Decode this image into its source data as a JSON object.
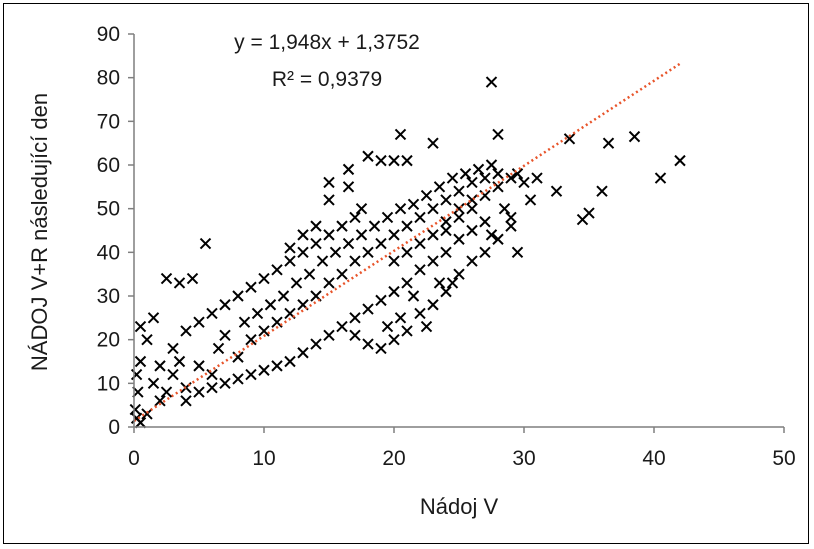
{
  "chart_data": {
    "type": "scatter",
    "title": "",
    "xlabel": "Nádoj V",
    "ylabel": "NÁDOJ V+R následující den",
    "xlim": [
      0,
      50
    ],
    "ylim": [
      0,
      90
    ],
    "x_ticks": [
      "0",
      "10",
      "20",
      "30",
      "40",
      "50"
    ],
    "y_ticks": [
      "0",
      "10",
      "20",
      "30",
      "40",
      "50",
      "60",
      "70",
      "80",
      "90"
    ],
    "grid": false,
    "legend": "none",
    "marker": "x",
    "marker_color": "#000000",
    "trendline": {
      "type": "linear",
      "slope": 1.948,
      "intercept": 1.3752,
      "x_range": [
        0,
        42
      ],
      "color": "#e8542a",
      "style": "dotted",
      "equation_label": "y = 1,948x + 1,3752",
      "r2_label": "R² = 0,9379"
    },
    "series": [
      {
        "values": [
          [
            27.5,
            79
          ],
          [
            42,
            61
          ],
          [
            40.5,
            57
          ],
          [
            38.5,
            66.5
          ],
          [
            36.5,
            65
          ],
          [
            33.5,
            66
          ],
          [
            36,
            54
          ],
          [
            35,
            49
          ],
          [
            34.5,
            47.5
          ],
          [
            32.5,
            54
          ],
          [
            31,
            57
          ],
          [
            30.5,
            52
          ],
          [
            29.5,
            40
          ],
          [
            29,
            46
          ],
          [
            28,
            67
          ],
          [
            23,
            65
          ],
          [
            20.5,
            67
          ],
          [
            20,
            61
          ],
          [
            21,
            61
          ],
          [
            19,
            61
          ],
          [
            18,
            62
          ],
          [
            16.5,
            59
          ],
          [
            15,
            56
          ],
          [
            16.5,
            55
          ],
          [
            17.5,
            50
          ],
          [
            5.5,
            42
          ],
          [
            4.5,
            34
          ],
          [
            3.5,
            33
          ],
          [
            2.5,
            34
          ],
          [
            1.5,
            25
          ],
          [
            0.5,
            23
          ],
          [
            1,
            20
          ],
          [
            0.5,
            15
          ],
          [
            0.2,
            12
          ],
          [
            0.3,
            8
          ],
          [
            0.1,
            4
          ],
          [
            0.2,
            2
          ],
          [
            0.5,
            1
          ],
          [
            1,
            3
          ],
          [
            2,
            6
          ],
          [
            1.5,
            10
          ],
          [
            3,
            12
          ],
          [
            2.5,
            8
          ],
          [
            4,
            9
          ],
          [
            3.5,
            15
          ],
          [
            5,
            14
          ],
          [
            6,
            12
          ],
          [
            6.5,
            18
          ],
          [
            7,
            21
          ],
          [
            8,
            16
          ],
          [
            8.5,
            24
          ],
          [
            9,
            20
          ],
          [
            9.5,
            26
          ],
          [
            10,
            22
          ],
          [
            10.5,
            28
          ],
          [
            11,
            24
          ],
          [
            11.5,
            30
          ],
          [
            12,
            26
          ],
          [
            12.5,
            33
          ],
          [
            13,
            28
          ],
          [
            13.5,
            35
          ],
          [
            14,
            30
          ],
          [
            14.5,
            38
          ],
          [
            15,
            33
          ],
          [
            15.5,
            40
          ],
          [
            16,
            35
          ],
          [
            16.5,
            42
          ],
          [
            17,
            38
          ],
          [
            17.5,
            44
          ],
          [
            18,
            40
          ],
          [
            18.5,
            46
          ],
          [
            19,
            42
          ],
          [
            19.5,
            48
          ],
          [
            20,
            44
          ],
          [
            20.5,
            50
          ],
          [
            21,
            46
          ],
          [
            21.5,
            51
          ],
          [
            22,
            48
          ],
          [
            22.5,
            53
          ],
          [
            23,
            50
          ],
          [
            23.5,
            55
          ],
          [
            24,
            52
          ],
          [
            24.5,
            57
          ],
          [
            25,
            54
          ],
          [
            25.5,
            58
          ],
          [
            26,
            56
          ],
          [
            26.5,
            59
          ],
          [
            27,
            57
          ],
          [
            27.5,
            60
          ],
          [
            28,
            58
          ],
          [
            24,
            45
          ],
          [
            25,
            48
          ],
          [
            26,
            50
          ],
          [
            25,
            43
          ],
          [
            24,
            40
          ],
          [
            23,
            38
          ],
          [
            22,
            36
          ],
          [
            21,
            33
          ],
          [
            20,
            31
          ],
          [
            19,
            29
          ],
          [
            18,
            27
          ],
          [
            17,
            25
          ],
          [
            16,
            23
          ],
          [
            15,
            21
          ],
          [
            14,
            19
          ],
          [
            13,
            17
          ],
          [
            12,
            15
          ],
          [
            11,
            14
          ],
          [
            10,
            13
          ],
          [
            9,
            12
          ],
          [
            8,
            11
          ],
          [
            7,
            10
          ],
          [
            6,
            9
          ],
          [
            5,
            8
          ],
          [
            4,
            6
          ],
          [
            2,
            14
          ],
          [
            3,
            18
          ],
          [
            4,
            22
          ],
          [
            5,
            24
          ],
          [
            6,
            26
          ],
          [
            7,
            28
          ],
          [
            8,
            30
          ],
          [
            9,
            32
          ],
          [
            10,
            34
          ],
          [
            11,
            36
          ],
          [
            12,
            38
          ],
          [
            13,
            40
          ],
          [
            14,
            42
          ],
          [
            15,
            44
          ],
          [
            16,
            46
          ],
          [
            17,
            48
          ],
          [
            15,
            52
          ],
          [
            14,
            46
          ],
          [
            13,
            44
          ],
          [
            12,
            41
          ],
          [
            20,
            38
          ],
          [
            21,
            40
          ],
          [
            22,
            42
          ],
          [
            23,
            44
          ],
          [
            24,
            47
          ],
          [
            25,
            50
          ],
          [
            26,
            52
          ],
          [
            27,
            53
          ],
          [
            28,
            55
          ],
          [
            29,
            57
          ],
          [
            29.5,
            58
          ],
          [
            30,
            56
          ],
          [
            28.5,
            50
          ],
          [
            27,
            47
          ],
          [
            26,
            45
          ],
          [
            19,
            18
          ],
          [
            20,
            20
          ],
          [
            21,
            22
          ],
          [
            18,
            19
          ],
          [
            17,
            21
          ],
          [
            22,
            26
          ],
          [
            23,
            28
          ],
          [
            24,
            31
          ],
          [
            23.5,
            33
          ],
          [
            25,
            35
          ],
          [
            26,
            38
          ],
          [
            27,
            40
          ],
          [
            28,
            43
          ],
          [
            27.5,
            44
          ],
          [
            29,
            48
          ],
          [
            24.5,
            33
          ],
          [
            22.5,
            23
          ],
          [
            20.5,
            25
          ],
          [
            19.5,
            23
          ],
          [
            21.5,
            30
          ]
        ]
      }
    ]
  }
}
